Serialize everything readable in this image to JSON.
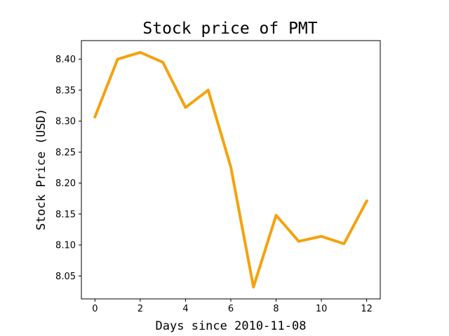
{
  "chart_data": {
    "type": "line",
    "title": "Stock price of PMT",
    "xlabel": "Days since 2010-11-08",
    "ylabel": "Stock Price (USD)",
    "x": [
      0,
      1,
      2,
      3,
      4,
      5,
      6,
      7,
      8,
      9,
      10,
      11,
      12
    ],
    "series": [
      {
        "values": [
          8.307,
          8.4,
          8.411,
          8.395,
          8.322,
          8.35,
          8.226,
          8.032,
          8.148,
          8.106,
          8.114,
          8.102,
          8.171
        ],
        "color": "#f5a20f"
      }
    ],
    "xlim": [
      -0.6,
      12.6
    ],
    "ylim": [
      8.013,
      8.43
    ],
    "xticks": [
      0,
      2,
      4,
      6,
      8,
      10,
      12
    ],
    "xtick_labels": [
      "0",
      "2",
      "4",
      "6",
      "8",
      "10",
      "12"
    ],
    "yticks": [
      8.05,
      8.1,
      8.15,
      8.2,
      8.25,
      8.3,
      8.35,
      8.4
    ],
    "ytick_labels": [
      "8.05",
      "8.10",
      "8.15",
      "8.20",
      "8.25",
      "8.30",
      "8.35",
      "8.40"
    ],
    "grid": false
  }
}
